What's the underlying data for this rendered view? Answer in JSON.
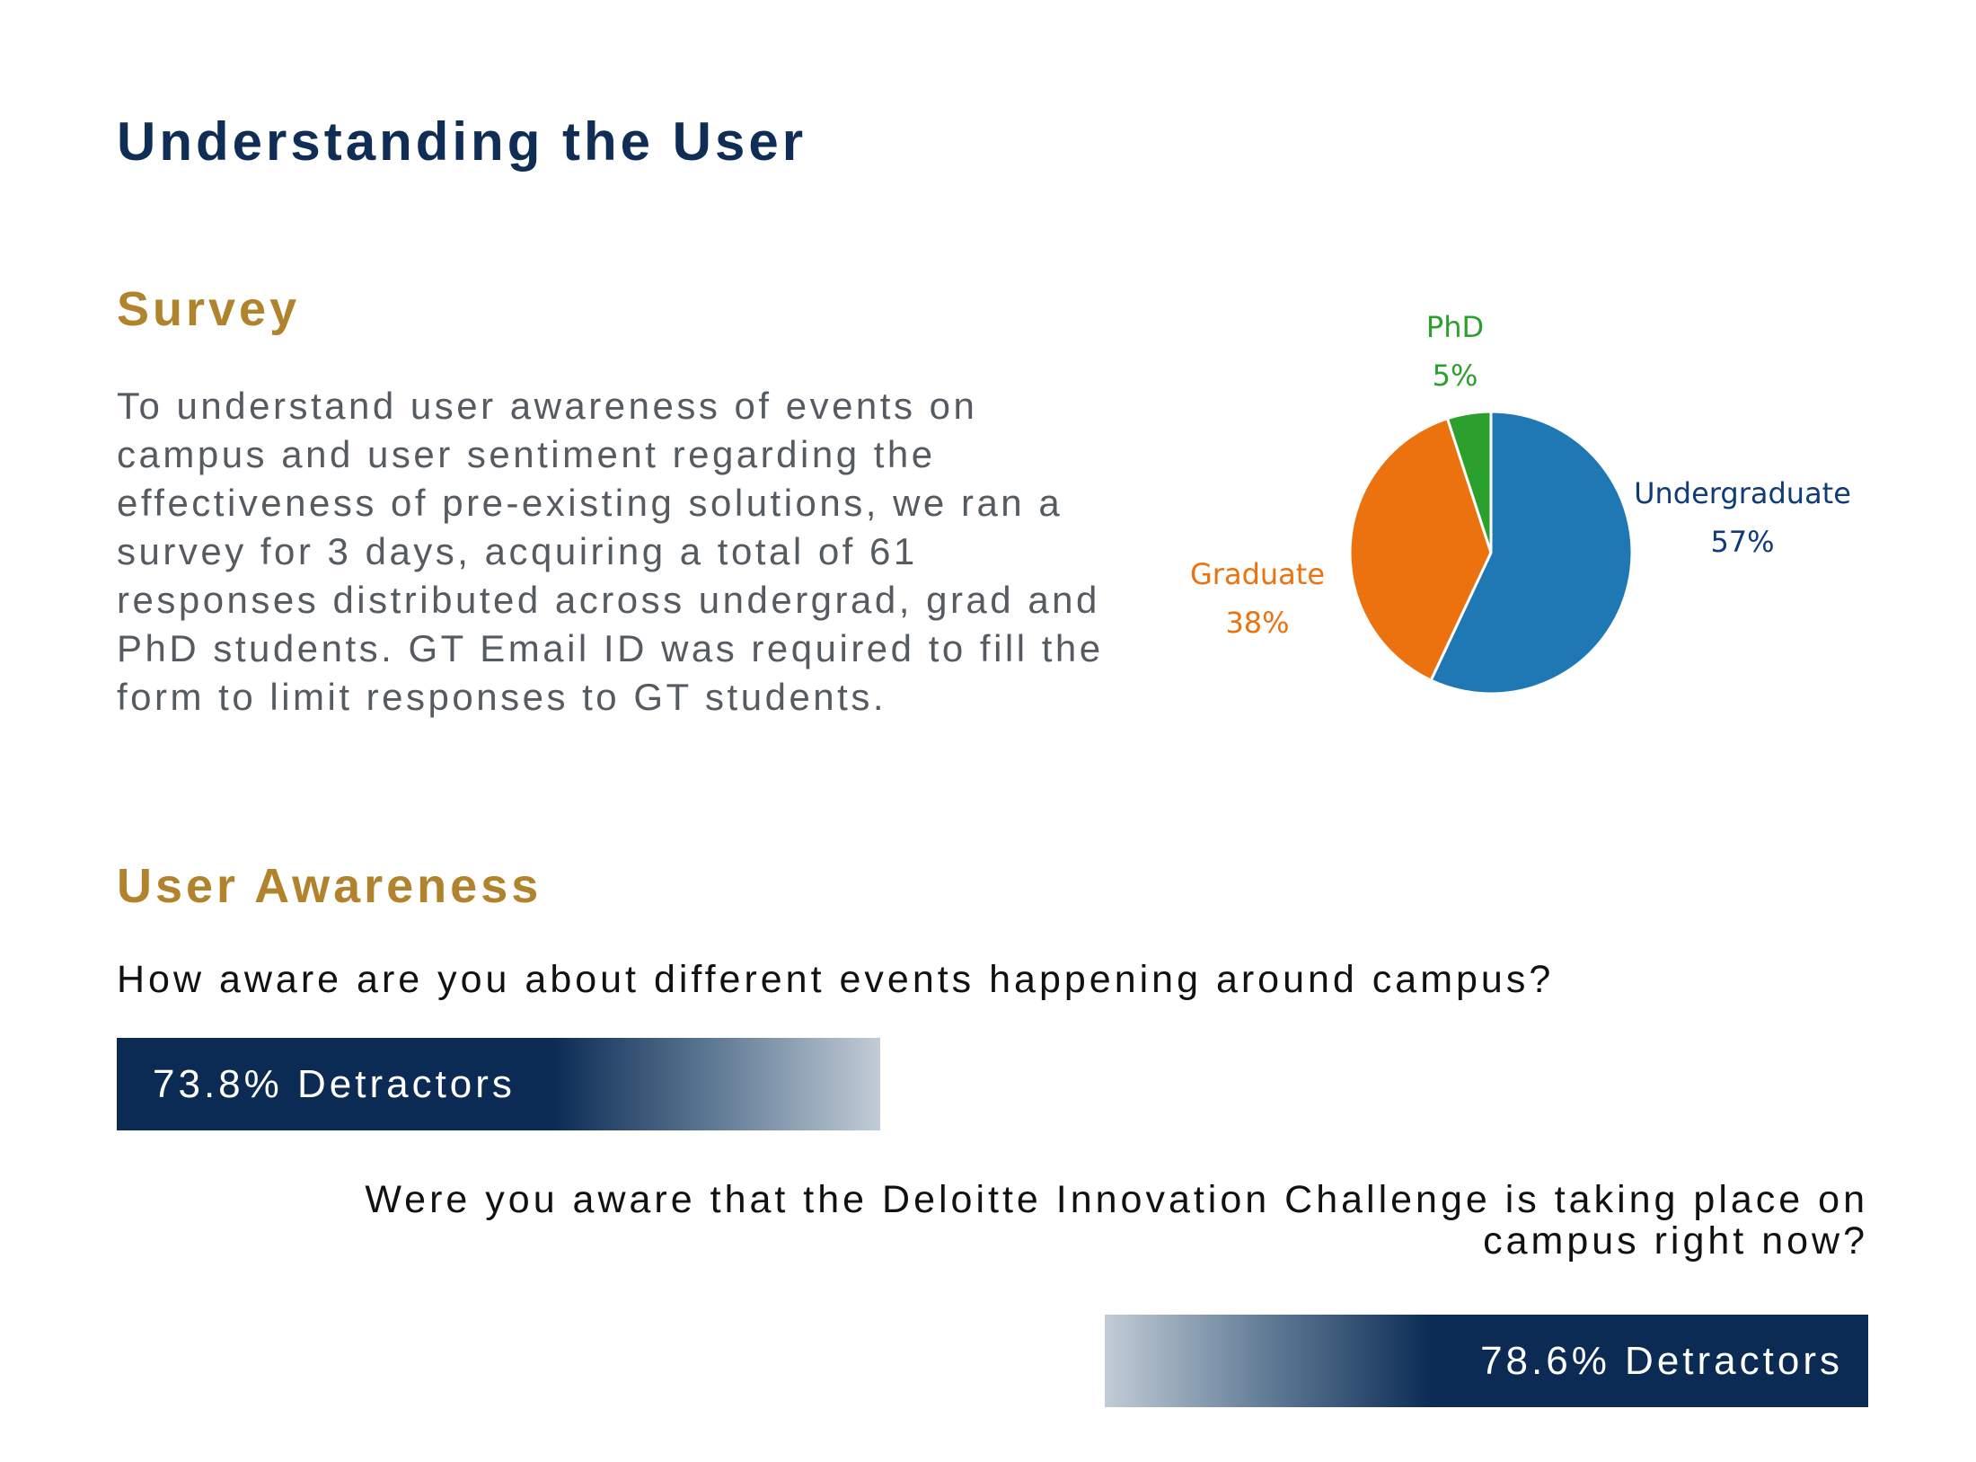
{
  "page": {
    "title": "Understanding the User"
  },
  "survey": {
    "heading": "Survey",
    "body": "To understand user awareness of events on campus and user sentiment regarding the effectiveness of pre-existing solutions, we ran a survey for 3 days, acquiring a total of 61 responses distributed across undergrad, grad and PhD students. GT Email ID was required to fill the form to limit responses to GT students."
  },
  "awareness": {
    "heading": "User Awareness",
    "question1": "How aware are you about different events happening around campus?",
    "result1": "73.8% Detractors",
    "result1_value": 73.8,
    "question2": "Were you aware that the Deloitte Innovation Challenge is taking place on campus right now?",
    "result2": "78.6% Detractors",
    "result2_value": 78.6
  },
  "colors": {
    "title": "#0f2d55",
    "heading": "#b0832c",
    "bar_dark": "#0b2b54",
    "bar_light": "#c2ccd6"
  },
  "chart_data": {
    "type": "pie",
    "title": "",
    "slices": [
      {
        "name": "Undergraduate",
        "value": 57,
        "label": "57%",
        "color": "#1f77b4",
        "label_color": "#0f3c78"
      },
      {
        "name": "Graduate",
        "value": 38,
        "label": "38%",
        "color": "#ec720f",
        "label_color": "#ec720f"
      },
      {
        "name": "PhD",
        "value": 5,
        "label": "5%",
        "color": "#2ca02c",
        "label_color": "#2ca02c"
      }
    ]
  }
}
